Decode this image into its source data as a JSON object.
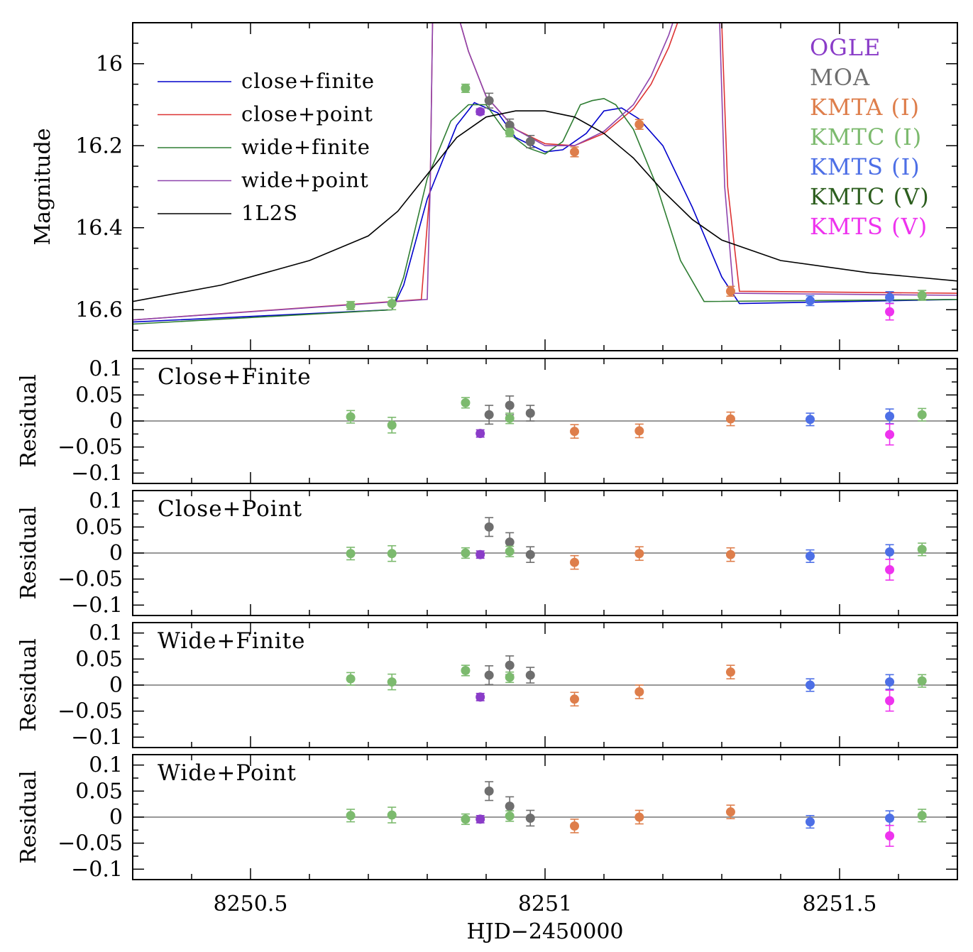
{
  "chart_data": {
    "type": "scatter",
    "xlabel": "HJD−2450000",
    "x_ticks": [
      "8250.5",
      "8251",
      "8251.5"
    ],
    "xlim": [
      8250.3,
      8251.7
    ],
    "main_panel": {
      "ylabel": "Magnitude",
      "ylim": [
        16.7,
        15.9
      ],
      "y_ticks": [
        "16",
        "16.2",
        "16.4",
        "16.6"
      ],
      "legend": [
        {
          "name": "close+finite",
          "color": "#0000cc"
        },
        {
          "name": "close+point",
          "color": "#dd3333"
        },
        {
          "name": "wide+finite",
          "color": "#2e7d32"
        },
        {
          "name": "wide+point",
          "color": "#8e44ad"
        },
        {
          "name": "1L2S",
          "color": "#000000"
        }
      ],
      "instruments": [
        {
          "name": "OGLE",
          "color": "#8a3cc8"
        },
        {
          "name": "MOA",
          "color": "#6e6e6e"
        },
        {
          "name": "KMTA (I)",
          "color": "#de7e4b"
        },
        {
          "name": "KMTC (I)",
          "color": "#7cba6e"
        },
        {
          "name": "KMTS (I)",
          "color": "#4d6fe6"
        },
        {
          "name": "KMTC (V)",
          "color": "#2c5e1e"
        },
        {
          "name": "KMTS (V)",
          "color": "#ee33ee"
        }
      ],
      "models": [
        {
          "name": "close+finite",
          "x": [
            8250.3,
            8250.74,
            8250.76,
            8250.8,
            8250.85,
            8250.88,
            8250.92,
            8250.95,
            8251.0,
            8251.03,
            8251.07,
            8251.1,
            8251.13,
            8251.16,
            8251.2,
            8251.25,
            8251.3,
            8251.33,
            8251.7
          ],
          "y": [
            16.63,
            16.6,
            16.54,
            16.33,
            16.15,
            16.095,
            16.12,
            16.18,
            16.215,
            16.21,
            16.17,
            16.115,
            16.108,
            16.135,
            16.2,
            16.35,
            16.52,
            16.585,
            16.575
          ]
        },
        {
          "name": "close+point",
          "x": [
            8250.3,
            8250.79,
            8250.805,
            8250.81,
            8250.82,
            8250.84,
            8250.87,
            8250.9,
            8250.95,
            8251.0,
            8251.05,
            8251.1,
            8251.15,
            8251.18,
            8251.21,
            8251.24,
            8251.26,
            8251.28,
            8251.295,
            8251.31,
            8251.33,
            8251.7
          ],
          "y": [
            16.625,
            16.575,
            16.3,
            15.8,
            15.75,
            15.82,
            15.97,
            16.08,
            16.16,
            16.195,
            16.2,
            16.17,
            16.11,
            16.05,
            15.96,
            15.84,
            15.7,
            15.6,
            15.7,
            16.3,
            16.555,
            16.56
          ]
        },
        {
          "name": "wide+finite",
          "x": [
            8250.3,
            8250.74,
            8250.76,
            8250.8,
            8250.84,
            8250.87,
            8250.9,
            8250.93,
            8250.97,
            8251.0,
            8251.03,
            8251.06,
            8251.08,
            8251.1,
            8251.12,
            8251.15,
            8251.19,
            8251.23,
            8251.27,
            8251.7
          ],
          "y": [
            16.635,
            16.6,
            16.52,
            16.28,
            16.14,
            16.1,
            16.1,
            16.16,
            16.205,
            16.22,
            16.19,
            16.1,
            16.09,
            16.085,
            16.1,
            16.16,
            16.3,
            16.48,
            16.58,
            16.575
          ]
        },
        {
          "name": "wide+point",
          "x": [
            8250.3,
            8250.8,
            8250.805,
            8250.81,
            8250.82,
            8250.84,
            8250.87,
            8250.9,
            8250.95,
            8251.0,
            8251.05,
            8251.1,
            8251.15,
            8251.18,
            8251.21,
            8251.24,
            8251.26,
            8251.28,
            8251.29,
            8251.305,
            8251.32,
            8251.7
          ],
          "y": [
            16.625,
            16.575,
            16.3,
            15.8,
            15.75,
            15.82,
            15.97,
            16.08,
            16.16,
            16.2,
            16.2,
            16.165,
            16.1,
            16.03,
            15.93,
            15.8,
            15.65,
            15.55,
            15.6,
            16.3,
            16.56,
            16.565
          ]
        },
        {
          "name": "1L2S",
          "x": [
            8250.3,
            8250.45,
            8250.6,
            8250.7,
            8250.75,
            8250.8,
            8250.85,
            8250.9,
            8250.95,
            8251.0,
            8251.05,
            8251.1,
            8251.15,
            8251.2,
            8251.25,
            8251.3,
            8251.4,
            8251.55,
            8251.7
          ],
          "y": [
            16.58,
            16.54,
            16.48,
            16.42,
            16.36,
            16.27,
            16.18,
            16.13,
            16.115,
            16.115,
            16.13,
            16.17,
            16.23,
            16.31,
            16.38,
            16.43,
            16.48,
            16.51,
            16.53
          ]
        }
      ],
      "points": [
        {
          "inst": "KMTC (I)",
          "x": 8250.67,
          "y": 16.59,
          "err": 0.01
        },
        {
          "inst": "KMTC (I)",
          "x": 8250.74,
          "y": 16.585,
          "err": 0.015
        },
        {
          "inst": "KMTC (I)",
          "x": 8250.865,
          "y": 16.06,
          "err": 0.01
        },
        {
          "inst": "OGLE",
          "x": 8250.89,
          "y": 16.117,
          "err": 0.007
        },
        {
          "inst": "MOA",
          "x": 8250.905,
          "y": 16.09,
          "err": 0.018
        },
        {
          "inst": "MOA",
          "x": 8250.94,
          "y": 16.15,
          "err": 0.015
        },
        {
          "inst": "KMTC (I)",
          "x": 8250.94,
          "y": 16.168,
          "err": 0.01
        },
        {
          "inst": "MOA",
          "x": 8250.975,
          "y": 16.19,
          "err": 0.015
        },
        {
          "inst": "KMTA (I)",
          "x": 8251.05,
          "y": 16.215,
          "err": 0.012
        },
        {
          "inst": "KMTA (I)",
          "x": 8251.16,
          "y": 16.148,
          "err": 0.012
        },
        {
          "inst": "KMTA (I)",
          "x": 8251.315,
          "y": 16.555,
          "err": 0.012
        },
        {
          "inst": "KMTS (I)",
          "x": 8251.45,
          "y": 16.578,
          "err": 0.012
        },
        {
          "inst": "KMTS (I)",
          "x": 8251.585,
          "y": 16.57,
          "err": 0.014
        },
        {
          "inst": "KMTS (V)",
          "x": 8251.585,
          "y": 16.605,
          "err": 0.02
        },
        {
          "inst": "KMTC (I)",
          "x": 8251.64,
          "y": 16.565,
          "err": 0.012
        }
      ]
    },
    "residual_panels": [
      {
        "title": "Close+Finite",
        "ylabel": "Residual",
        "ylim": [
          -0.12,
          0.12
        ],
        "y_ticks": [
          "0.1",
          "0.05",
          "0",
          "−0.05",
          "−0.1"
        ],
        "points": [
          {
            "inst": "KMTC (I)",
            "x": 8250.67,
            "y": 0.008,
            "err": 0.012
          },
          {
            "inst": "KMTC (I)",
            "x": 8250.74,
            "y": -0.008,
            "err": 0.015
          },
          {
            "inst": "KMTC (I)",
            "x": 8250.865,
            "y": 0.035,
            "err": 0.01
          },
          {
            "inst": "OGLE",
            "x": 8250.89,
            "y": -0.024,
            "err": 0.007
          },
          {
            "inst": "MOA",
            "x": 8250.905,
            "y": 0.012,
            "err": 0.018
          },
          {
            "inst": "MOA",
            "x": 8250.94,
            "y": 0.03,
            "err": 0.018
          },
          {
            "inst": "KMTC (I)",
            "x": 8250.94,
            "y": 0.005,
            "err": 0.01
          },
          {
            "inst": "MOA",
            "x": 8250.975,
            "y": 0.015,
            "err": 0.015
          },
          {
            "inst": "KMTA (I)",
            "x": 8251.05,
            "y": -0.02,
            "err": 0.013
          },
          {
            "inst": "KMTA (I)",
            "x": 8251.16,
            "y": -0.019,
            "err": 0.013
          },
          {
            "inst": "KMTA (I)",
            "x": 8251.315,
            "y": 0.004,
            "err": 0.013
          },
          {
            "inst": "KMTS (I)",
            "x": 8251.45,
            "y": 0.003,
            "err": 0.012
          },
          {
            "inst": "KMTS (I)",
            "x": 8251.585,
            "y": 0.009,
            "err": 0.014
          },
          {
            "inst": "KMTS (V)",
            "x": 8251.585,
            "y": -0.026,
            "err": 0.02
          },
          {
            "inst": "KMTC (I)",
            "x": 8251.64,
            "y": 0.012,
            "err": 0.012
          }
        ]
      },
      {
        "title": "Close+Point",
        "ylabel": "Residual",
        "ylim": [
          -0.12,
          0.12
        ],
        "y_ticks": [
          "0.1",
          "0.05",
          "0",
          "−0.05",
          "−0.1"
        ],
        "points": [
          {
            "inst": "KMTC (I)",
            "x": 8250.67,
            "y": -0.001,
            "err": 0.012
          },
          {
            "inst": "KMTC (I)",
            "x": 8250.74,
            "y": -0.001,
            "err": 0.015
          },
          {
            "inst": "KMTC (I)",
            "x": 8250.865,
            "y": 0.0,
            "err": 0.01
          },
          {
            "inst": "OGLE",
            "x": 8250.89,
            "y": -0.003,
            "err": 0.007
          },
          {
            "inst": "MOA",
            "x": 8250.905,
            "y": 0.05,
            "err": 0.018
          },
          {
            "inst": "MOA",
            "x": 8250.94,
            "y": 0.021,
            "err": 0.018
          },
          {
            "inst": "KMTC (I)",
            "x": 8250.94,
            "y": 0.003,
            "err": 0.01
          },
          {
            "inst": "MOA",
            "x": 8250.975,
            "y": -0.003,
            "err": 0.015
          },
          {
            "inst": "KMTA (I)",
            "x": 8251.05,
            "y": -0.018,
            "err": 0.013
          },
          {
            "inst": "KMTA (I)",
            "x": 8251.16,
            "y": -0.001,
            "err": 0.013
          },
          {
            "inst": "KMTA (I)",
            "x": 8251.315,
            "y": -0.003,
            "err": 0.013
          },
          {
            "inst": "KMTS (I)",
            "x": 8251.45,
            "y": -0.006,
            "err": 0.012
          },
          {
            "inst": "KMTS (I)",
            "x": 8251.585,
            "y": 0.002,
            "err": 0.014
          },
          {
            "inst": "KMTS (V)",
            "x": 8251.585,
            "y": -0.032,
            "err": 0.02
          },
          {
            "inst": "KMTC (I)",
            "x": 8251.64,
            "y": 0.007,
            "err": 0.012
          }
        ]
      },
      {
        "title": "Wide+Finite",
        "ylabel": "Residual",
        "ylim": [
          -0.12,
          0.12
        ],
        "y_ticks": [
          "0.1",
          "0.05",
          "0",
          "−0.05",
          "−0.1"
        ],
        "points": [
          {
            "inst": "KMTC (I)",
            "x": 8250.67,
            "y": 0.012,
            "err": 0.012
          },
          {
            "inst": "KMTC (I)",
            "x": 8250.74,
            "y": 0.006,
            "err": 0.015
          },
          {
            "inst": "KMTC (I)",
            "x": 8250.865,
            "y": 0.028,
            "err": 0.01
          },
          {
            "inst": "OGLE",
            "x": 8250.89,
            "y": -0.023,
            "err": 0.007
          },
          {
            "inst": "MOA",
            "x": 8250.905,
            "y": 0.019,
            "err": 0.018
          },
          {
            "inst": "MOA",
            "x": 8250.94,
            "y": 0.038,
            "err": 0.018
          },
          {
            "inst": "KMTC (I)",
            "x": 8250.94,
            "y": 0.015,
            "err": 0.01
          },
          {
            "inst": "MOA",
            "x": 8250.975,
            "y": 0.019,
            "err": 0.015
          },
          {
            "inst": "KMTA (I)",
            "x": 8251.05,
            "y": -0.027,
            "err": 0.013
          },
          {
            "inst": "KMTA (I)",
            "x": 8251.16,
            "y": -0.013,
            "err": 0.013
          },
          {
            "inst": "KMTA (I)",
            "x": 8251.315,
            "y": 0.025,
            "err": 0.013
          },
          {
            "inst": "KMTS (I)",
            "x": 8251.45,
            "y": 0.0,
            "err": 0.012
          },
          {
            "inst": "KMTS (I)",
            "x": 8251.585,
            "y": 0.006,
            "err": 0.014
          },
          {
            "inst": "KMTS (V)",
            "x": 8251.585,
            "y": -0.03,
            "err": 0.02
          },
          {
            "inst": "KMTC (I)",
            "x": 8251.64,
            "y": 0.008,
            "err": 0.012
          }
        ]
      },
      {
        "title": "Wide+Point",
        "ylabel": "Residual",
        "ylim": [
          -0.12,
          0.12
        ],
        "y_ticks": [
          "0.1",
          "0.05",
          "0",
          "−0.05",
          "−0.1"
        ],
        "points": [
          {
            "inst": "KMTC (I)",
            "x": 8250.67,
            "y": 0.003,
            "err": 0.012
          },
          {
            "inst": "KMTC (I)",
            "x": 8250.74,
            "y": 0.004,
            "err": 0.015
          },
          {
            "inst": "KMTC (I)",
            "x": 8250.865,
            "y": -0.004,
            "err": 0.01
          },
          {
            "inst": "OGLE",
            "x": 8250.89,
            "y": -0.004,
            "err": 0.007
          },
          {
            "inst": "MOA",
            "x": 8250.905,
            "y": 0.05,
            "err": 0.018
          },
          {
            "inst": "MOA",
            "x": 8250.94,
            "y": 0.021,
            "err": 0.018
          },
          {
            "inst": "KMTC (I)",
            "x": 8250.94,
            "y": 0.002,
            "err": 0.01
          },
          {
            "inst": "MOA",
            "x": 8250.975,
            "y": -0.002,
            "err": 0.015
          },
          {
            "inst": "KMTA (I)",
            "x": 8251.05,
            "y": -0.017,
            "err": 0.013
          },
          {
            "inst": "KMTA (I)",
            "x": 8251.16,
            "y": 0.0,
            "err": 0.013
          },
          {
            "inst": "KMTA (I)",
            "x": 8251.315,
            "y": 0.01,
            "err": 0.013
          },
          {
            "inst": "KMTS (I)",
            "x": 8251.45,
            "y": -0.009,
            "err": 0.012
          },
          {
            "inst": "KMTS (I)",
            "x": 8251.585,
            "y": -0.002,
            "err": 0.014
          },
          {
            "inst": "KMTS (V)",
            "x": 8251.585,
            "y": -0.036,
            "err": 0.02
          },
          {
            "inst": "KMTC (I)",
            "x": 8251.64,
            "y": 0.003,
            "err": 0.012
          }
        ]
      }
    ]
  }
}
